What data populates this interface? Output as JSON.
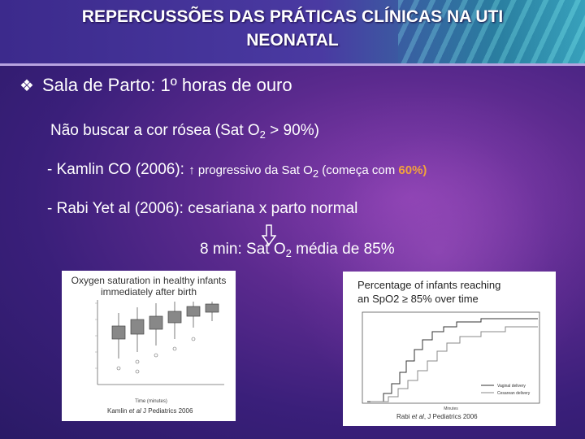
{
  "slide": {
    "title_line1": "REPERCUSSÕES DAS PRÁTICAS CLÍNICAS NA UTI",
    "title_line2": "NEONATAL",
    "bullet": "Sala de Parto: 1º horas de ouro",
    "line1_a": "Não buscar a cor rósea (Sat O",
    "line1_sub": "2",
    "line1_b": " > 90%)",
    "line2_a": "- Kamlin CO (2006): ",
    "line2_b": "↑ progressivo da Sat O",
    "line2_sub": "2",
    "line2_c": " (começa com ",
    "line2_hl": "60%)",
    "line3": "- Rabi Yet al (2006): cesariana x parto normal",
    "line4_a": "8 min: Sat O",
    "line4_sub": "2",
    "line4_b": "  média de 85%"
  },
  "figure1": {
    "title_line1": "Oxygen saturation in healthy infants",
    "title_line2": "immediately after birth",
    "xlabel": "Time (minutes)",
    "citation_author": "Kamlin ",
    "citation_etal": "et al",
    "citation_rest": " J Pediatrics 2006"
  },
  "figure2": {
    "title_line1": "Percentage of infants reaching",
    "title_line2": "an SpO2 ≥ 85% over time",
    "legend": [
      "Vaginal delivery",
      "Cesarean delivery"
    ],
    "xlabel": "Minutes",
    "citation_author": "Rabi ",
    "citation_etal": "et al",
    "citation_rest": ", J Pediatrics 2006"
  },
  "colors": {
    "background": "#4a2688",
    "text": "#ffffff",
    "highlight": "#f2a23c",
    "title_bar": "#3c2a8c"
  }
}
